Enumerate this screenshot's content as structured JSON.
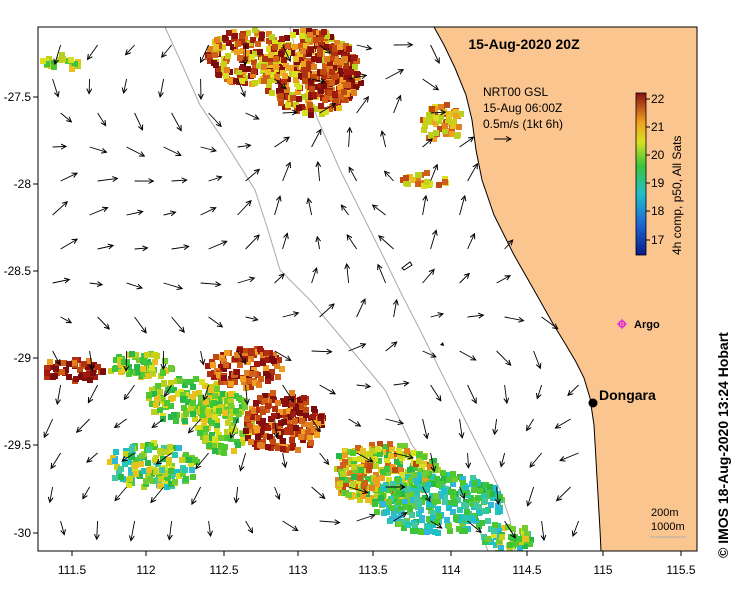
{
  "map": {
    "timestamp_title": "15-Aug-2020 20Z",
    "annotation": {
      "line1": "NRT00 GSL",
      "line2": "15-Aug 06:00Z",
      "line3": "0.5m/s (1kt 6h)"
    },
    "place_labels": {
      "argo": "Argo",
      "dongara": "Dongara"
    },
    "contour_labels": {
      "c200": "200m",
      "c1000": "1000m"
    },
    "credit": "© IMOS 18-Aug-2020 13:24 Hobart",
    "colorbar": {
      "label": "4h comp, p50, All Sats",
      "ticks": [
        "22",
        "21",
        "20",
        "19",
        "18",
        "17"
      ]
    },
    "x_ticks": [
      "111.5",
      "112",
      "112.5",
      "113",
      "113.5",
      "114",
      "114.5",
      "115",
      "115.5"
    ],
    "y_ticks": [
      "-27.5",
      "-28",
      "-28.5",
      "-29",
      "-29.5",
      "-30"
    ],
    "colors": {
      "land": "#fbc590",
      "coast": "#000000",
      "contour": "#aaaaaa",
      "argo_marker": "#dd22dd"
    }
  }
}
